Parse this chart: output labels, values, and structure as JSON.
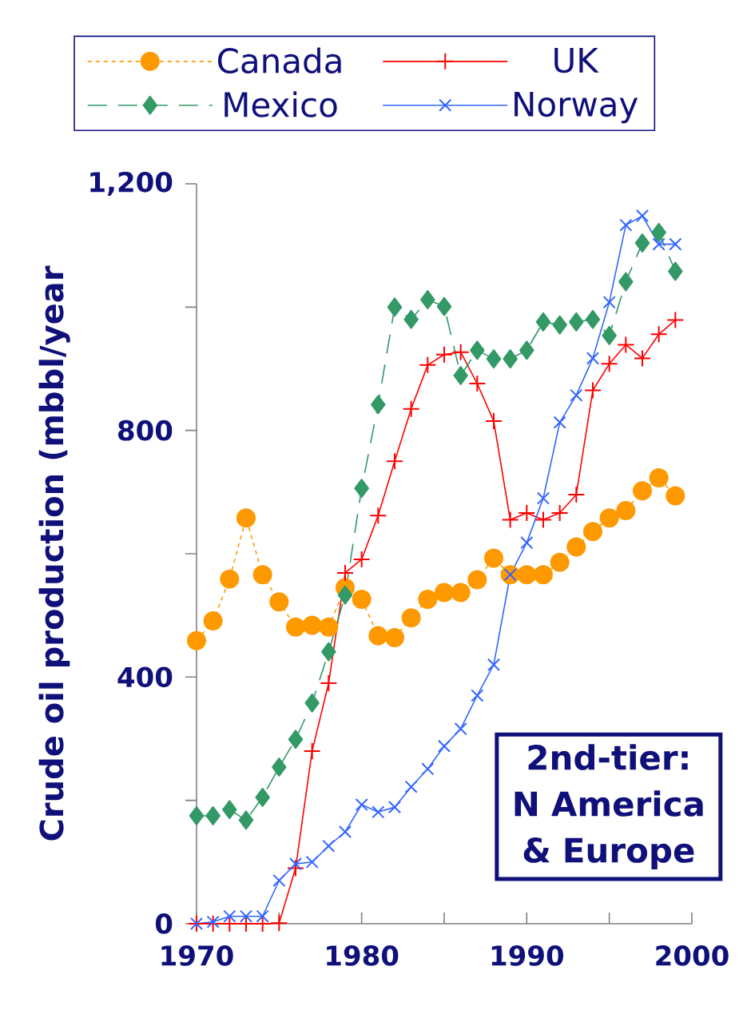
{
  "chart_data": {
    "type": "line",
    "ylabel": "Crude oil production (mbbl/year",
    "x": [
      1970,
      1971,
      1972,
      1973,
      1974,
      1975,
      1976,
      1977,
      1978,
      1979,
      1980,
      1981,
      1982,
      1983,
      1984,
      1985,
      1986,
      1987,
      1988,
      1989,
      1990,
      1991,
      1992,
      1993,
      1994,
      1995,
      1996,
      1997,
      1998,
      1999
    ],
    "series": [
      {
        "name": "Canada",
        "color": "#ff9900",
        "marker": "circle",
        "line_style": "dotted",
        "values": [
          459,
          491,
          559,
          658,
          566,
          522,
          481,
          484,
          481,
          545,
          526,
          467,
          464,
          496,
          526,
          537,
          537,
          558,
          593,
          566,
          566,
          566,
          586,
          611,
          636,
          658,
          670,
          702,
          723,
          694
        ]
      },
      {
        "name": "UK",
        "color": "#ff0000",
        "marker": "plus",
        "line_style": "solid",
        "values": [
          0,
          0,
          0,
          0,
          0,
          1,
          90,
          280,
          390,
          569,
          591,
          662,
          750,
          835,
          906,
          923,
          927,
          876,
          815,
          655,
          666,
          655,
          666,
          696,
          865,
          908,
          939,
          917,
          956,
          979
        ]
      },
      {
        "name": "Mexico",
        "color": "#339966",
        "marker": "diamond",
        "line_style": "dashed",
        "values": [
          175,
          175,
          185,
          168,
          205,
          254,
          299,
          358,
          441,
          533,
          706,
          842,
          1000,
          980,
          1012,
          1001,
          889,
          930,
          916,
          916,
          930,
          976,
          971,
          976,
          980,
          954,
          1041,
          1104,
          1121,
          1058
        ]
      },
      {
        "name": "Norway",
        "color": "#3366ff",
        "marker": "cross",
        "line_style": "solid",
        "values": [
          0,
          3,
          12,
          12,
          12,
          70,
          97,
          100,
          126,
          149,
          193,
          181,
          189,
          222,
          251,
          288,
          316,
          370,
          420,
          566,
          618,
          690,
          813,
          857,
          917,
          1008,
          1133,
          1148,
          1102,
          1102
        ]
      }
    ],
    "xlim": [
      1970,
      2000
    ],
    "xticks": [
      1970,
      {
        "value": 1975,
        "label": null
      },
      1980,
      {
        "value": 1985,
        "label": null
      },
      1990,
      {
        "value": 1995,
        "label": null
      },
      2000
    ],
    "ylim": [
      0,
      1200
    ],
    "yticks": [
      0,
      {
        "value": 200,
        "label": null
      },
      400,
      {
        "value": 600,
        "label": null
      },
      800,
      {
        "value": 1000,
        "label": null
      },
      {
        "value": 1200,
        "label": "1,200"
      }
    ],
    "grid": false,
    "legend": "top",
    "annotations": [
      "2nd-tier: N America & Europe"
    ]
  }
}
